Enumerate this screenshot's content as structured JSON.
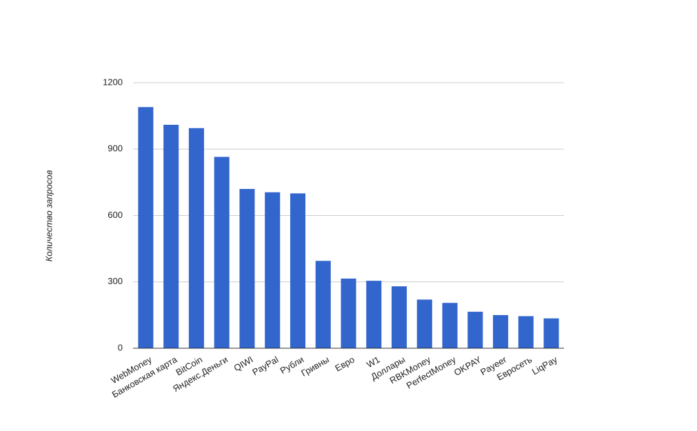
{
  "chart_data": {
    "type": "bar",
    "y_label": "Количество запросов",
    "categories": [
      "WebMoney",
      "Банковская карта",
      "BitCoin",
      "Яндекс.Деньги",
      "QIWI",
      "PayPal",
      "Рубли",
      "Гривны",
      "Евро",
      "W1",
      "Доллары",
      "RBKMoney",
      "PerfectMoney",
      "OKPAY",
      "Payeer",
      "Евросеть",
      "LiqPay"
    ],
    "values": [
      1090,
      1010,
      995,
      865,
      720,
      705,
      700,
      395,
      315,
      305,
      280,
      220,
      205,
      165,
      150,
      145,
      135
    ],
    "color": "#3366cc",
    "ylim": [
      0,
      1200
    ],
    "yticks": [
      0,
      300,
      600,
      900,
      1200
    ],
    "grid": true
  }
}
